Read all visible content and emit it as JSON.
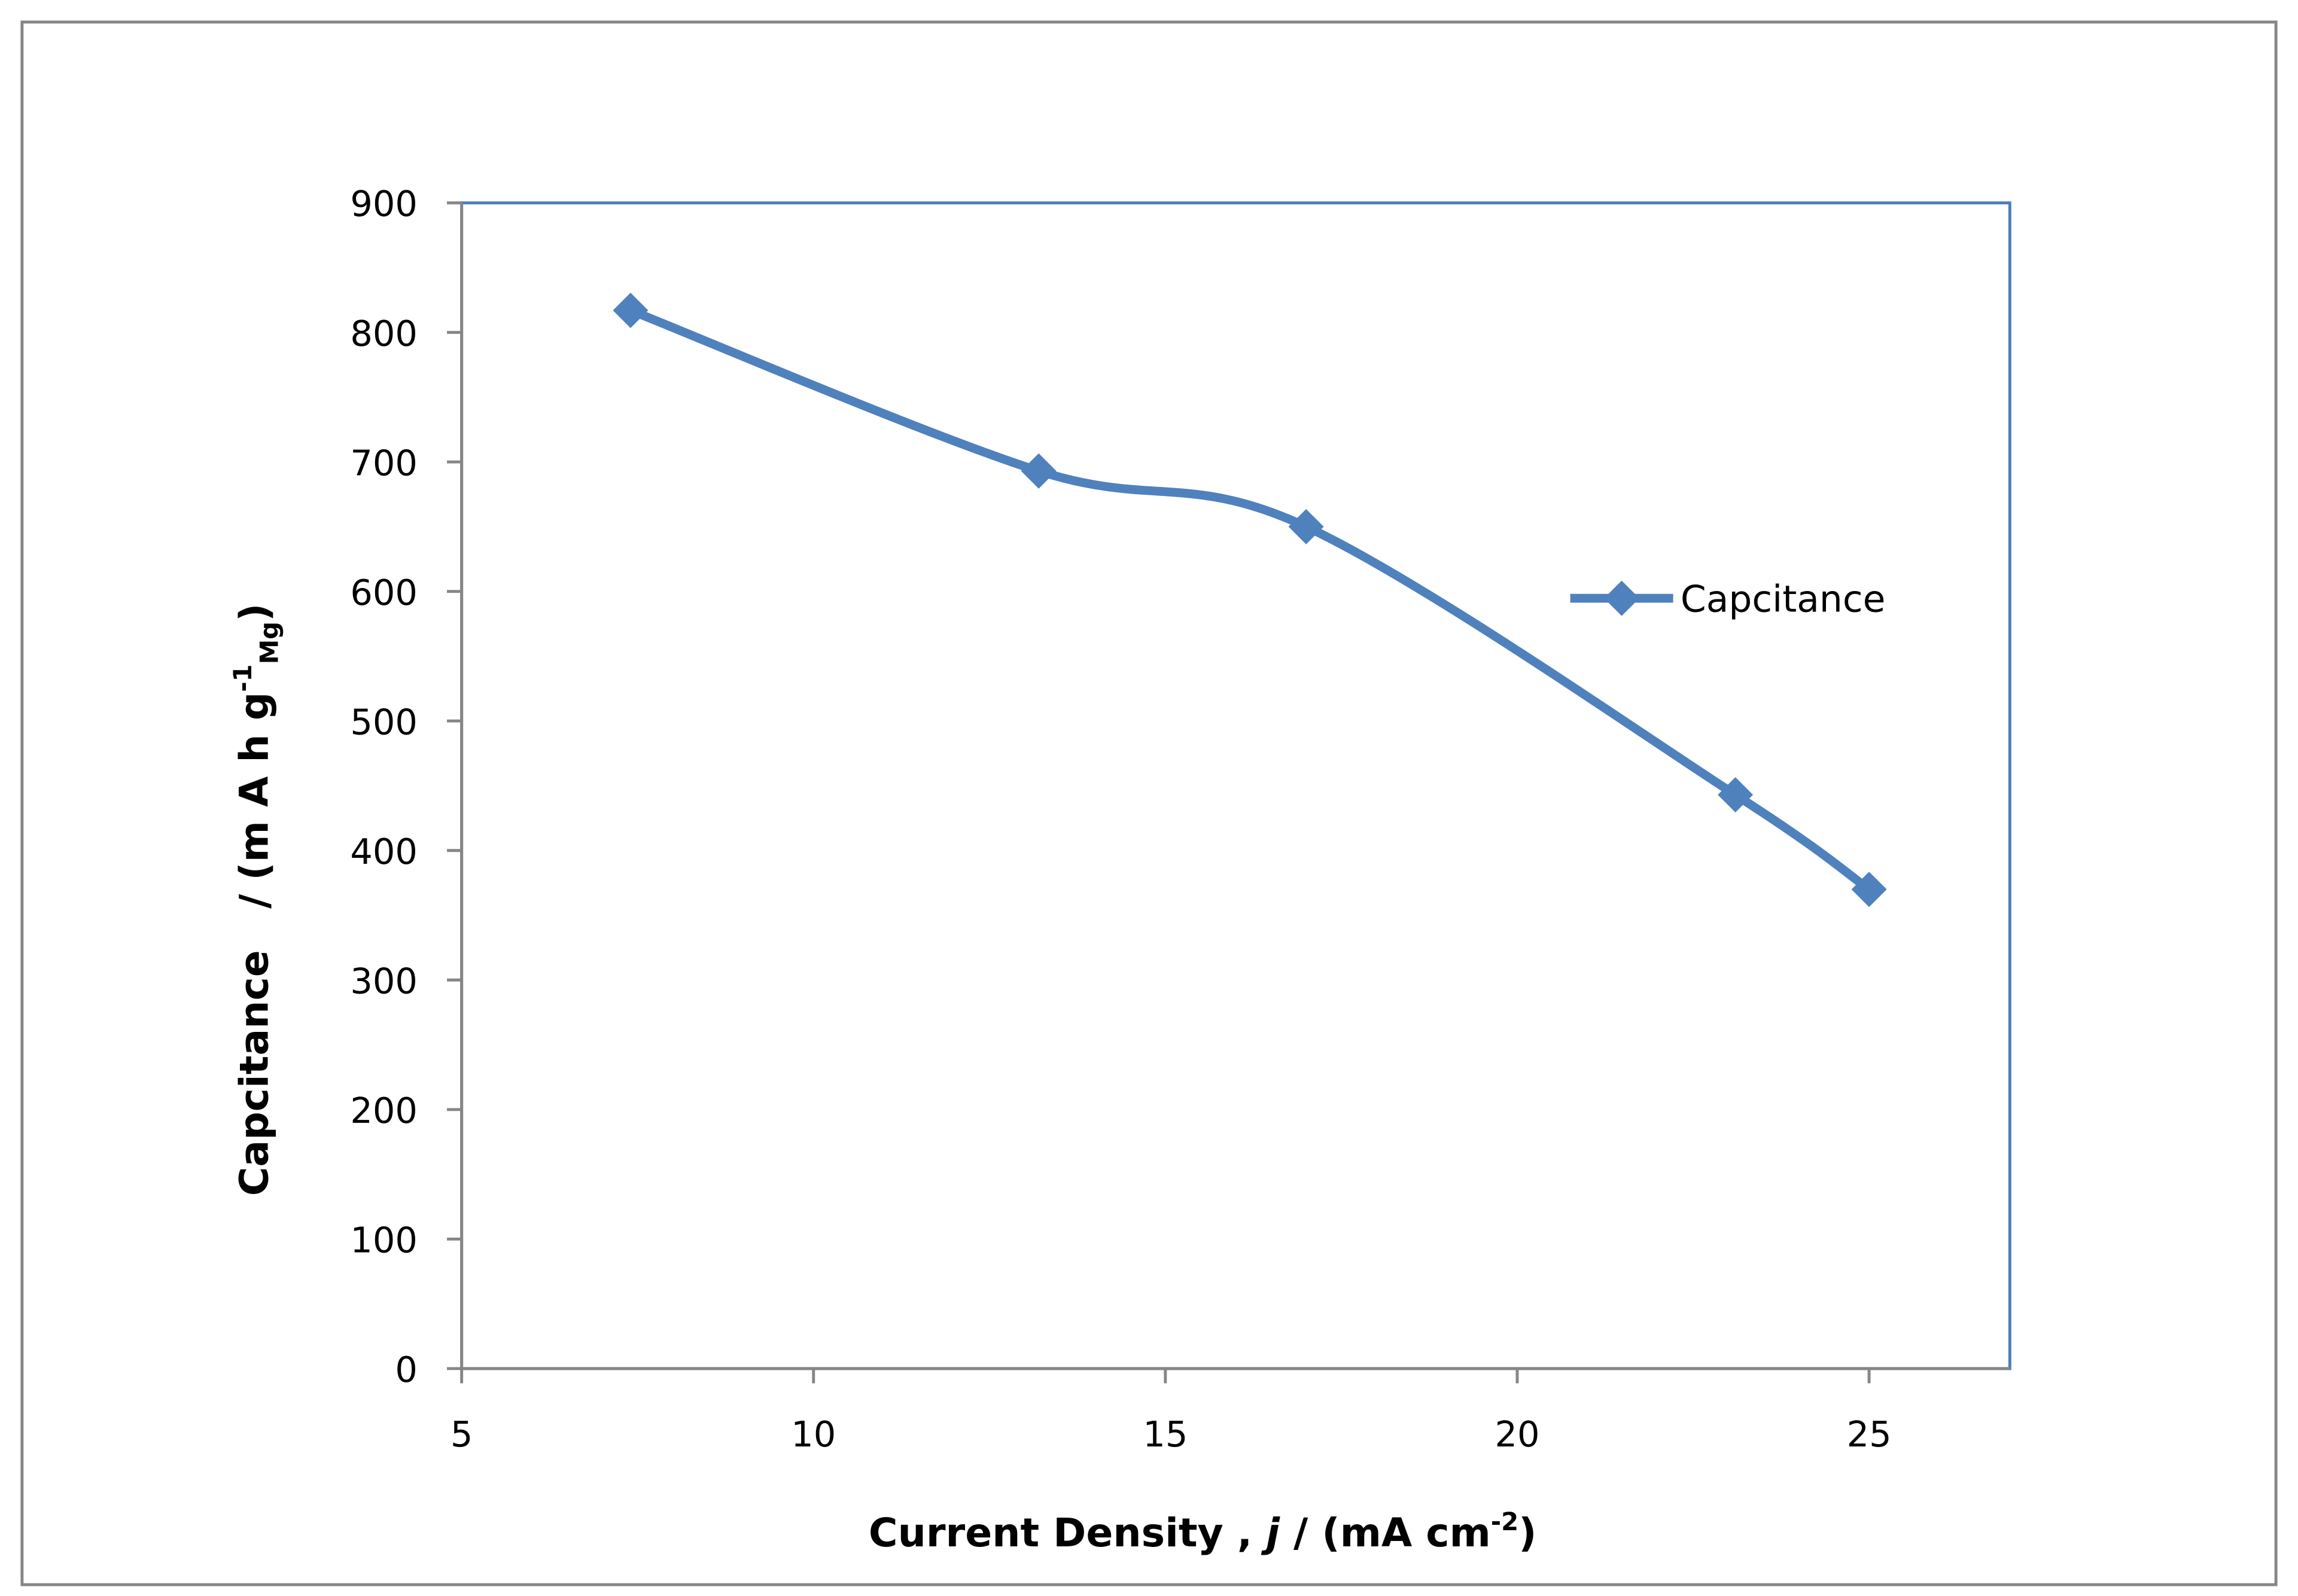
{
  "chart_data": {
    "type": "line",
    "xlabel": [
      "Current Density , ",
      "j",
      " / (mA cm",
      "-2",
      ")"
    ],
    "ylabel": [
      "Capcitance   / (m A h g",
      "-1",
      "Mg",
      ")"
    ],
    "x": [
      7.4,
      13.2,
      17,
      23.1,
      25
    ],
    "series": [
      {
        "name": "Capcitance",
        "color": "#4f81bd",
        "values": [
          817,
          693,
          650,
          443,
          370
        ]
      }
    ],
    "xlim": [
      5,
      27
    ],
    "xticks": [
      5,
      10,
      15,
      20,
      25
    ],
    "ylim": [
      0,
      900
    ],
    "yticks": [
      0,
      100,
      200,
      300,
      400,
      500,
      600,
      700,
      800,
      900
    ],
    "smooth": true,
    "legend": "right"
  }
}
